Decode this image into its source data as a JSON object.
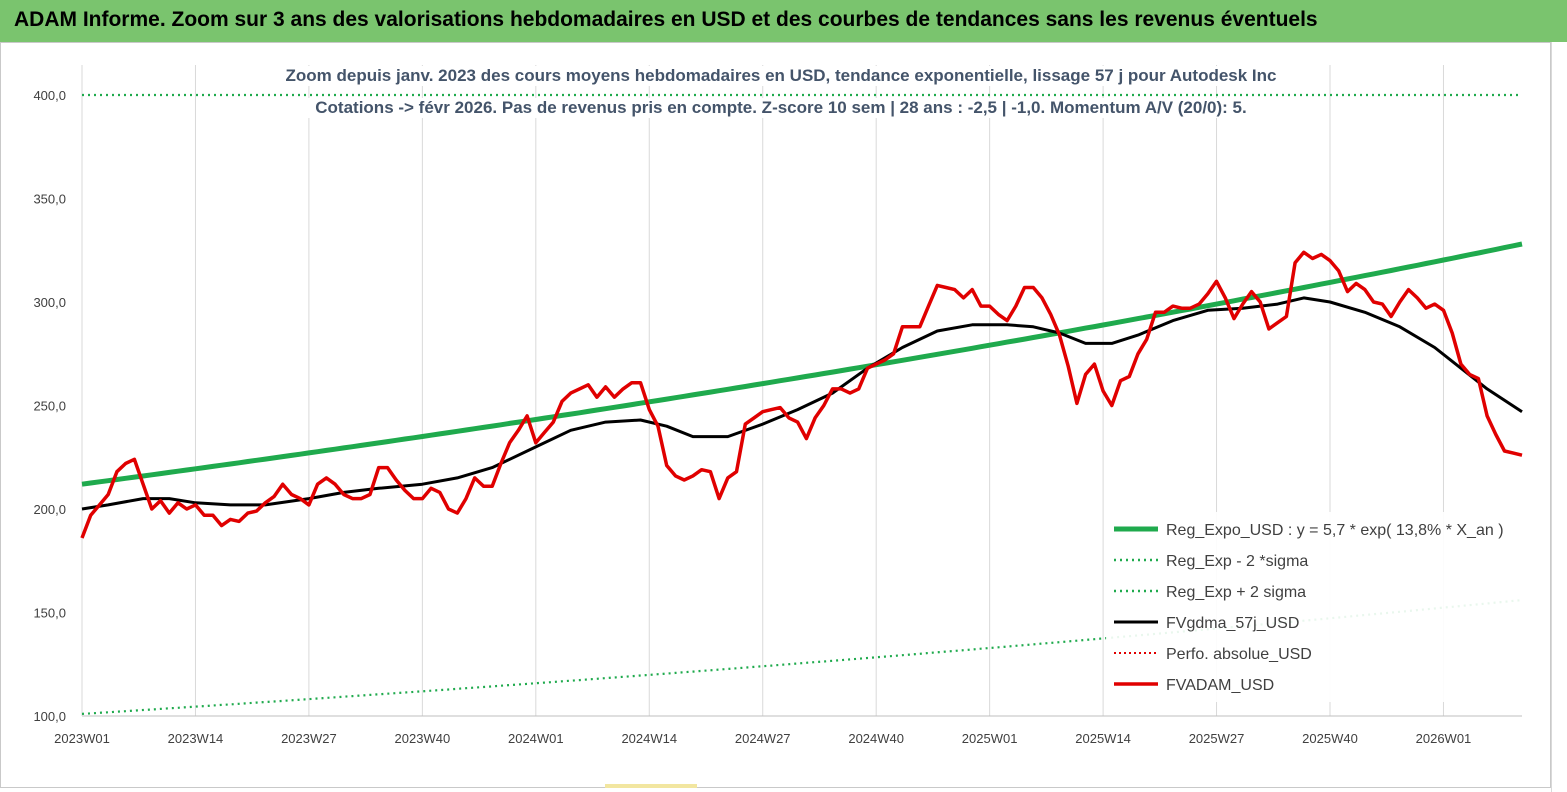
{
  "header": {
    "title": "ADAM Informe. Zoom sur 3 ans des valorisations hebdomadaires en USD et des courbes de tendances sans les revenus éventuels"
  },
  "chart_data": {
    "type": "line",
    "title": "Zoom depuis janv. 2023 des cours moyens hebdomadaires en USD, tendance exponentielle, lissage 57 j pour Autodesk Inc",
    "subtitle": "Cotations -> févr 2026.  Pas de revenus pris en compte. Z-score 10 sem  | 28 ans : -2,5  | -1,0. Momentum A/V (20/0): 5.",
    "xlabel": "",
    "ylabel": "",
    "ylim": [
      100,
      400
    ],
    "yticks": [
      "100,0",
      "150,0",
      "200,0",
      "250,0",
      "300,0",
      "350,0",
      "400,0"
    ],
    "ytick_values": [
      100,
      150,
      200,
      250,
      300,
      350,
      400
    ],
    "xticks": [
      "2023W01",
      "2023W14",
      "2023W27",
      "2023W40",
      "2024W01",
      "2024W14",
      "2024W27",
      "2024W40",
      "2025W01",
      "2025W14",
      "2025W27",
      "2025W40",
      "2026W01"
    ],
    "xtick_index": [
      0,
      13,
      26,
      39,
      52,
      65,
      78,
      91,
      104,
      117,
      130,
      143,
      156
    ],
    "x_count": 166,
    "grid": "vertical",
    "legend_position": "bottom-right",
    "colors": {
      "reg_expo": "#1faa4d",
      "sigma": "#1faa4d",
      "fvgdma": "#000000",
      "perfo": "#e00000",
      "fvadam": "#e00000",
      "banner": "#7ac46e",
      "subtitle_text": "#44546a"
    },
    "series": [
      {
        "name": "Reg_Expo_USD : y = 5,7 * exp( 13,8% *  X_an )",
        "style": "solid-thick",
        "start_value": 212,
        "end_value": 328
      },
      {
        "name": "Reg_Exp - 2 *sigma",
        "style": "dotted",
        "start_value": 101,
        "end_value": 156
      },
      {
        "name": "Reg_Exp + 2 sigma",
        "style": "dotted",
        "values_note": "",
        "start_value": 400,
        "end_value": 400
      },
      {
        "name": "FVgdma_57j_USD",
        "style": "solid",
        "points": [
          [
            0,
            200
          ],
          [
            3,
            202
          ],
          [
            7,
            205
          ],
          [
            10,
            205
          ],
          [
            13,
            203
          ],
          [
            17,
            202
          ],
          [
            21,
            202
          ],
          [
            26,
            205
          ],
          [
            30,
            208
          ],
          [
            34,
            210
          ],
          [
            39,
            212
          ],
          [
            43,
            215
          ],
          [
            47,
            220
          ],
          [
            52,
            230
          ],
          [
            56,
            238
          ],
          [
            60,
            242
          ],
          [
            64,
            243
          ],
          [
            67,
            240
          ],
          [
            70,
            235
          ],
          [
            74,
            235
          ],
          [
            78,
            241
          ],
          [
            82,
            248
          ],
          [
            86,
            256
          ],
          [
            90,
            268
          ],
          [
            94,
            278
          ],
          [
            98,
            286
          ],
          [
            102,
            289
          ],
          [
            106,
            289
          ],
          [
            109,
            288
          ],
          [
            112,
            285
          ],
          [
            115,
            280
          ],
          [
            118,
            280
          ],
          [
            121,
            284
          ],
          [
            125,
            291
          ],
          [
            129,
            296
          ],
          [
            133,
            297
          ],
          [
            137,
            299
          ],
          [
            140,
            302
          ],
          [
            143,
            300
          ],
          [
            147,
            295
          ],
          [
            151,
            288
          ],
          [
            155,
            278
          ],
          [
            158,
            268
          ],
          [
            161,
            258
          ],
          [
            165,
            247
          ]
        ]
      },
      {
        "name": "Perfo. absolue_USD",
        "style": "dotted",
        "points": []
      },
      {
        "name": "FVADAM_USD",
        "style": "solid-thick",
        "points": [
          [
            0,
            186
          ],
          [
            1,
            197
          ],
          [
            2,
            202
          ],
          [
            3,
            207
          ],
          [
            4,
            218
          ],
          [
            5,
            222
          ],
          [
            6,
            224
          ],
          [
            7,
            212
          ],
          [
            8,
            200
          ],
          [
            9,
            204
          ],
          [
            10,
            198
          ],
          [
            11,
            203
          ],
          [
            12,
            200
          ],
          [
            13,
            202
          ],
          [
            14,
            197
          ],
          [
            15,
            197
          ],
          [
            16,
            192
          ],
          [
            17,
            195
          ],
          [
            18,
            194
          ],
          [
            19,
            198
          ],
          [
            20,
            199
          ],
          [
            21,
            203
          ],
          [
            22,
            206
          ],
          [
            23,
            212
          ],
          [
            24,
            207
          ],
          [
            25,
            205
          ],
          [
            26,
            202
          ],
          [
            27,
            212
          ],
          [
            28,
            215
          ],
          [
            29,
            212
          ],
          [
            30,
            207
          ],
          [
            31,
            205
          ],
          [
            32,
            205
          ],
          [
            33,
            207
          ],
          [
            34,
            220
          ],
          [
            35,
            220
          ],
          [
            36,
            214
          ],
          [
            37,
            209
          ],
          [
            38,
            205
          ],
          [
            39,
            205
          ],
          [
            40,
            210
          ],
          [
            41,
            208
          ],
          [
            42,
            200
          ],
          [
            43,
            198
          ],
          [
            44,
            205
          ],
          [
            45,
            215
          ],
          [
            46,
            211
          ],
          [
            47,
            211
          ],
          [
            48,
            222
          ],
          [
            49,
            232
          ],
          [
            50,
            238
          ],
          [
            51,
            245
          ],
          [
            52,
            232
          ],
          [
            53,
            237
          ],
          [
            54,
            242
          ],
          [
            55,
            252
          ],
          [
            56,
            256
          ],
          [
            57,
            258
          ],
          [
            58,
            260
          ],
          [
            59,
            254
          ],
          [
            60,
            259
          ],
          [
            61,
            254
          ],
          [
            62,
            258
          ],
          [
            63,
            261
          ],
          [
            64,
            261
          ],
          [
            65,
            248
          ],
          [
            66,
            240
          ],
          [
            67,
            221
          ],
          [
            68,
            216
          ],
          [
            69,
            214
          ],
          [
            70,
            216
          ],
          [
            71,
            219
          ],
          [
            72,
            218
          ],
          [
            73,
            205
          ],
          [
            74,
            215
          ],
          [
            75,
            218
          ],
          [
            76,
            241
          ],
          [
            77,
            244
          ],
          [
            78,
            247
          ],
          [
            79,
            248
          ],
          [
            80,
            249
          ],
          [
            81,
            244
          ],
          [
            82,
            242
          ],
          [
            83,
            234
          ],
          [
            84,
            244
          ],
          [
            85,
            250
          ],
          [
            86,
            258
          ],
          [
            87,
            258
          ],
          [
            88,
            256
          ],
          [
            89,
            258
          ],
          [
            90,
            268
          ],
          [
            91,
            270
          ],
          [
            92,
            272
          ],
          [
            93,
            275
          ],
          [
            94,
            288
          ],
          [
            95,
            288
          ],
          [
            96,
            288
          ],
          [
            97,
            298
          ],
          [
            98,
            308
          ],
          [
            99,
            307
          ],
          [
            100,
            306
          ],
          [
            101,
            302
          ],
          [
            102,
            306
          ],
          [
            103,
            298
          ],
          [
            104,
            298
          ],
          [
            105,
            294
          ],
          [
            106,
            291
          ],
          [
            107,
            298
          ],
          [
            108,
            307
          ],
          [
            109,
            307
          ],
          [
            110,
            302
          ],
          [
            111,
            294
          ],
          [
            112,
            284
          ],
          [
            113,
            269
          ],
          [
            114,
            251
          ],
          [
            115,
            265
          ],
          [
            116,
            270
          ],
          [
            117,
            257
          ],
          [
            118,
            250
          ],
          [
            119,
            262
          ],
          [
            120,
            264
          ],
          [
            121,
            275
          ],
          [
            122,
            282
          ],
          [
            123,
            295
          ],
          [
            124,
            295
          ],
          [
            125,
            298
          ],
          [
            126,
            297
          ],
          [
            127,
            297
          ],
          [
            128,
            299
          ],
          [
            129,
            304
          ],
          [
            130,
            310
          ],
          [
            131,
            302
          ],
          [
            132,
            292
          ],
          [
            133,
            299
          ],
          [
            134,
            305
          ],
          [
            135,
            300
          ],
          [
            136,
            287
          ],
          [
            137,
            290
          ],
          [
            138,
            293
          ],
          [
            139,
            319
          ],
          [
            140,
            324
          ],
          [
            141,
            321
          ],
          [
            142,
            323
          ],
          [
            143,
            320
          ],
          [
            144,
            315
          ],
          [
            145,
            305
          ],
          [
            146,
            309
          ],
          [
            147,
            306
          ],
          [
            148,
            300
          ],
          [
            149,
            299
          ],
          [
            150,
            293
          ],
          [
            151,
            300
          ],
          [
            152,
            306
          ],
          [
            153,
            302
          ],
          [
            154,
            297
          ],
          [
            155,
            299
          ],
          [
            156,
            296
          ],
          [
            157,
            285
          ],
          [
            158,
            270
          ],
          [
            159,
            265
          ],
          [
            160,
            263
          ],
          [
            161,
            245
          ],
          [
            162,
            236
          ],
          [
            163,
            228
          ],
          [
            164,
            227
          ],
          [
            165,
            226
          ]
        ]
      }
    ]
  }
}
